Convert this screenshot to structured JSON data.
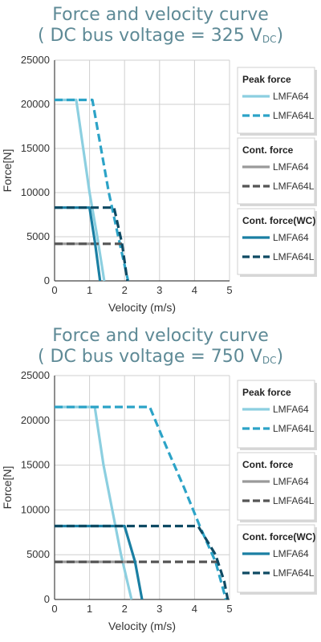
{
  "chart_data": [
    {
      "type": "line",
      "title": "Force and velocity curve",
      "subtitle_prefix": "( DC bus voltage = 325 V",
      "subtitle_sub": "DC",
      "subtitle_suffix": ")",
      "xlabel": "Velocity (m/s)",
      "ylabel": "Force[N]",
      "xlim": [
        0,
        5
      ],
      "ylim": [
        0,
        25000
      ],
      "xticks": [
        "0",
        "1",
        "2",
        "3",
        "4",
        "5"
      ],
      "yticks": [
        "0",
        "5000",
        "10000",
        "15000",
        "20000",
        "25000"
      ],
      "grid": true,
      "legend_position": "right",
      "legend_groups": [
        {
          "label": "Peak force",
          "items": [
            {
              "label": "LMFA64",
              "color": "#8ccfe0",
              "dash": false
            },
            {
              "label": "LMFA64L",
              "color": "#2ca3c7",
              "dash": true
            }
          ]
        },
        {
          "label": "Cont. force",
          "items": [
            {
              "label": "LMFA64",
              "color": "#9a9a9a",
              "dash": false
            },
            {
              "label": "LMFA64L",
              "color": "#555555",
              "dash": true
            }
          ]
        },
        {
          "label": "Cont. force(WC)",
          "items": [
            {
              "label": "LMFA64",
              "color": "#1a7fa3",
              "dash": false
            },
            {
              "label": "LMFA64L",
              "color": "#0e4a63",
              "dash": true
            }
          ]
        }
      ],
      "series": [
        {
          "group": "Peak force",
          "model": "LMFA64",
          "color": "#8ccfe0",
          "dash": false,
          "points": [
            [
              0,
              20500
            ],
            [
              0.62,
              20500
            ],
            [
              1.0,
              10000
            ],
            [
              1.22,
              5000
            ],
            [
              1.42,
              0
            ]
          ]
        },
        {
          "group": "Peak force",
          "model": "LMFA64L",
          "color": "#2ca3c7",
          "dash": true,
          "points": [
            [
              0,
              20500
            ],
            [
              1.08,
              20500
            ],
            [
              1.55,
              10000
            ],
            [
              1.82,
              5000
            ],
            [
              2.1,
              0
            ]
          ]
        },
        {
          "group": "Cont. force",
          "model": "LMFA64",
          "color": "#9a9a9a",
          "dash": false,
          "points": [
            [
              0,
              4200
            ],
            [
              1.15,
              4200
            ]
          ]
        },
        {
          "group": "Cont. force",
          "model": "LMFA64L",
          "color": "#555555",
          "dash": true,
          "points": [
            [
              0,
              4200
            ],
            [
              1.93,
              4200
            ]
          ]
        },
        {
          "group": "Cont. force(WC)",
          "model": "LMFA64",
          "color": "#1a7fa3",
          "dash": false,
          "points": [
            [
              0,
              8300
            ],
            [
              1.0,
              8300
            ],
            [
              1.16,
              4200
            ],
            [
              1.3,
              0
            ]
          ]
        },
        {
          "group": "Cont. force(WC)",
          "model": "LMFA64L",
          "color": "#0e4a63",
          "dash": true,
          "points": [
            [
              0,
              8300
            ],
            [
              1.7,
              8300
            ],
            [
              1.93,
              4200
            ],
            [
              2.08,
              0
            ]
          ]
        }
      ]
    },
    {
      "type": "line",
      "title": "Force and velocity curve",
      "subtitle_prefix": "( DC bus voltage = 750 V",
      "subtitle_sub": "DC",
      "subtitle_suffix": ")",
      "xlabel": "Velocity (m/s)",
      "ylabel": "Force[N]",
      "xlim": [
        0,
        5
      ],
      "ylim": [
        0,
        25000
      ],
      "xticks": [
        "0",
        "1",
        "2",
        "3",
        "4",
        "5"
      ],
      "yticks": [
        "0",
        "5000",
        "10000",
        "15000",
        "20000",
        "25000"
      ],
      "grid": true,
      "legend_position": "right",
      "legend_groups": [
        {
          "label": "Peak force",
          "items": [
            {
              "label": "LMFA64",
              "color": "#8ccfe0",
              "dash": false
            },
            {
              "label": "LMFA64L",
              "color": "#2ca3c7",
              "dash": true
            }
          ]
        },
        {
          "label": "Cont. force",
          "items": [
            {
              "label": "LMFA64",
              "color": "#9a9a9a",
              "dash": false
            },
            {
              "label": "LMFA64L",
              "color": "#555555",
              "dash": true
            }
          ]
        },
        {
          "label": "Cont. force(WC)",
          "items": [
            {
              "label": "LMFA64",
              "color": "#1a7fa3",
              "dash": false
            },
            {
              "label": "LMFA64L",
              "color": "#0e4a63",
              "dash": true
            }
          ]
        }
      ],
      "series": [
        {
          "group": "Peak force",
          "model": "LMFA64",
          "color": "#8ccfe0",
          "dash": false,
          "points": [
            [
              0,
              21500
            ],
            [
              1.15,
              21500
            ],
            [
              1.4,
              15000
            ],
            [
              1.65,
              10000
            ],
            [
              1.9,
              5000
            ],
            [
              2.2,
              0
            ]
          ]
        },
        {
          "group": "Peak force",
          "model": "LMFA64L",
          "color": "#2ca3c7",
          "dash": true,
          "points": [
            [
              0,
              21500
            ],
            [
              2.72,
              21500
            ],
            [
              3.2,
              17000
            ],
            [
              3.7,
              12500
            ],
            [
              4.15,
              8200
            ],
            [
              4.6,
              4200
            ],
            [
              4.9,
              0
            ]
          ]
        },
        {
          "group": "Cont. force",
          "model": "LMFA64",
          "color": "#9a9a9a",
          "dash": false,
          "points": [
            [
              0,
              4200
            ],
            [
              2.35,
              4200
            ]
          ]
        },
        {
          "group": "Cont. force",
          "model": "LMFA64L",
          "color": "#555555",
          "dash": true,
          "points": [
            [
              0,
              4200
            ],
            [
              4.7,
              4200
            ]
          ]
        },
        {
          "group": "Cont. force(WC)",
          "model": "LMFA64",
          "color": "#1a7fa3",
          "dash": false,
          "points": [
            [
              0,
              8200
            ],
            [
              2.0,
              8200
            ],
            [
              2.3,
              4200
            ],
            [
              2.5,
              0
            ]
          ]
        },
        {
          "group": "Cont. force(WC)",
          "model": "LMFA64L",
          "color": "#0e4a63",
          "dash": true,
          "points": [
            [
              0,
              8200
            ],
            [
              4.1,
              8200
            ],
            [
              4.6,
              5000
            ],
            [
              4.85,
              2000
            ],
            [
              4.95,
              0
            ]
          ]
        }
      ]
    }
  ]
}
